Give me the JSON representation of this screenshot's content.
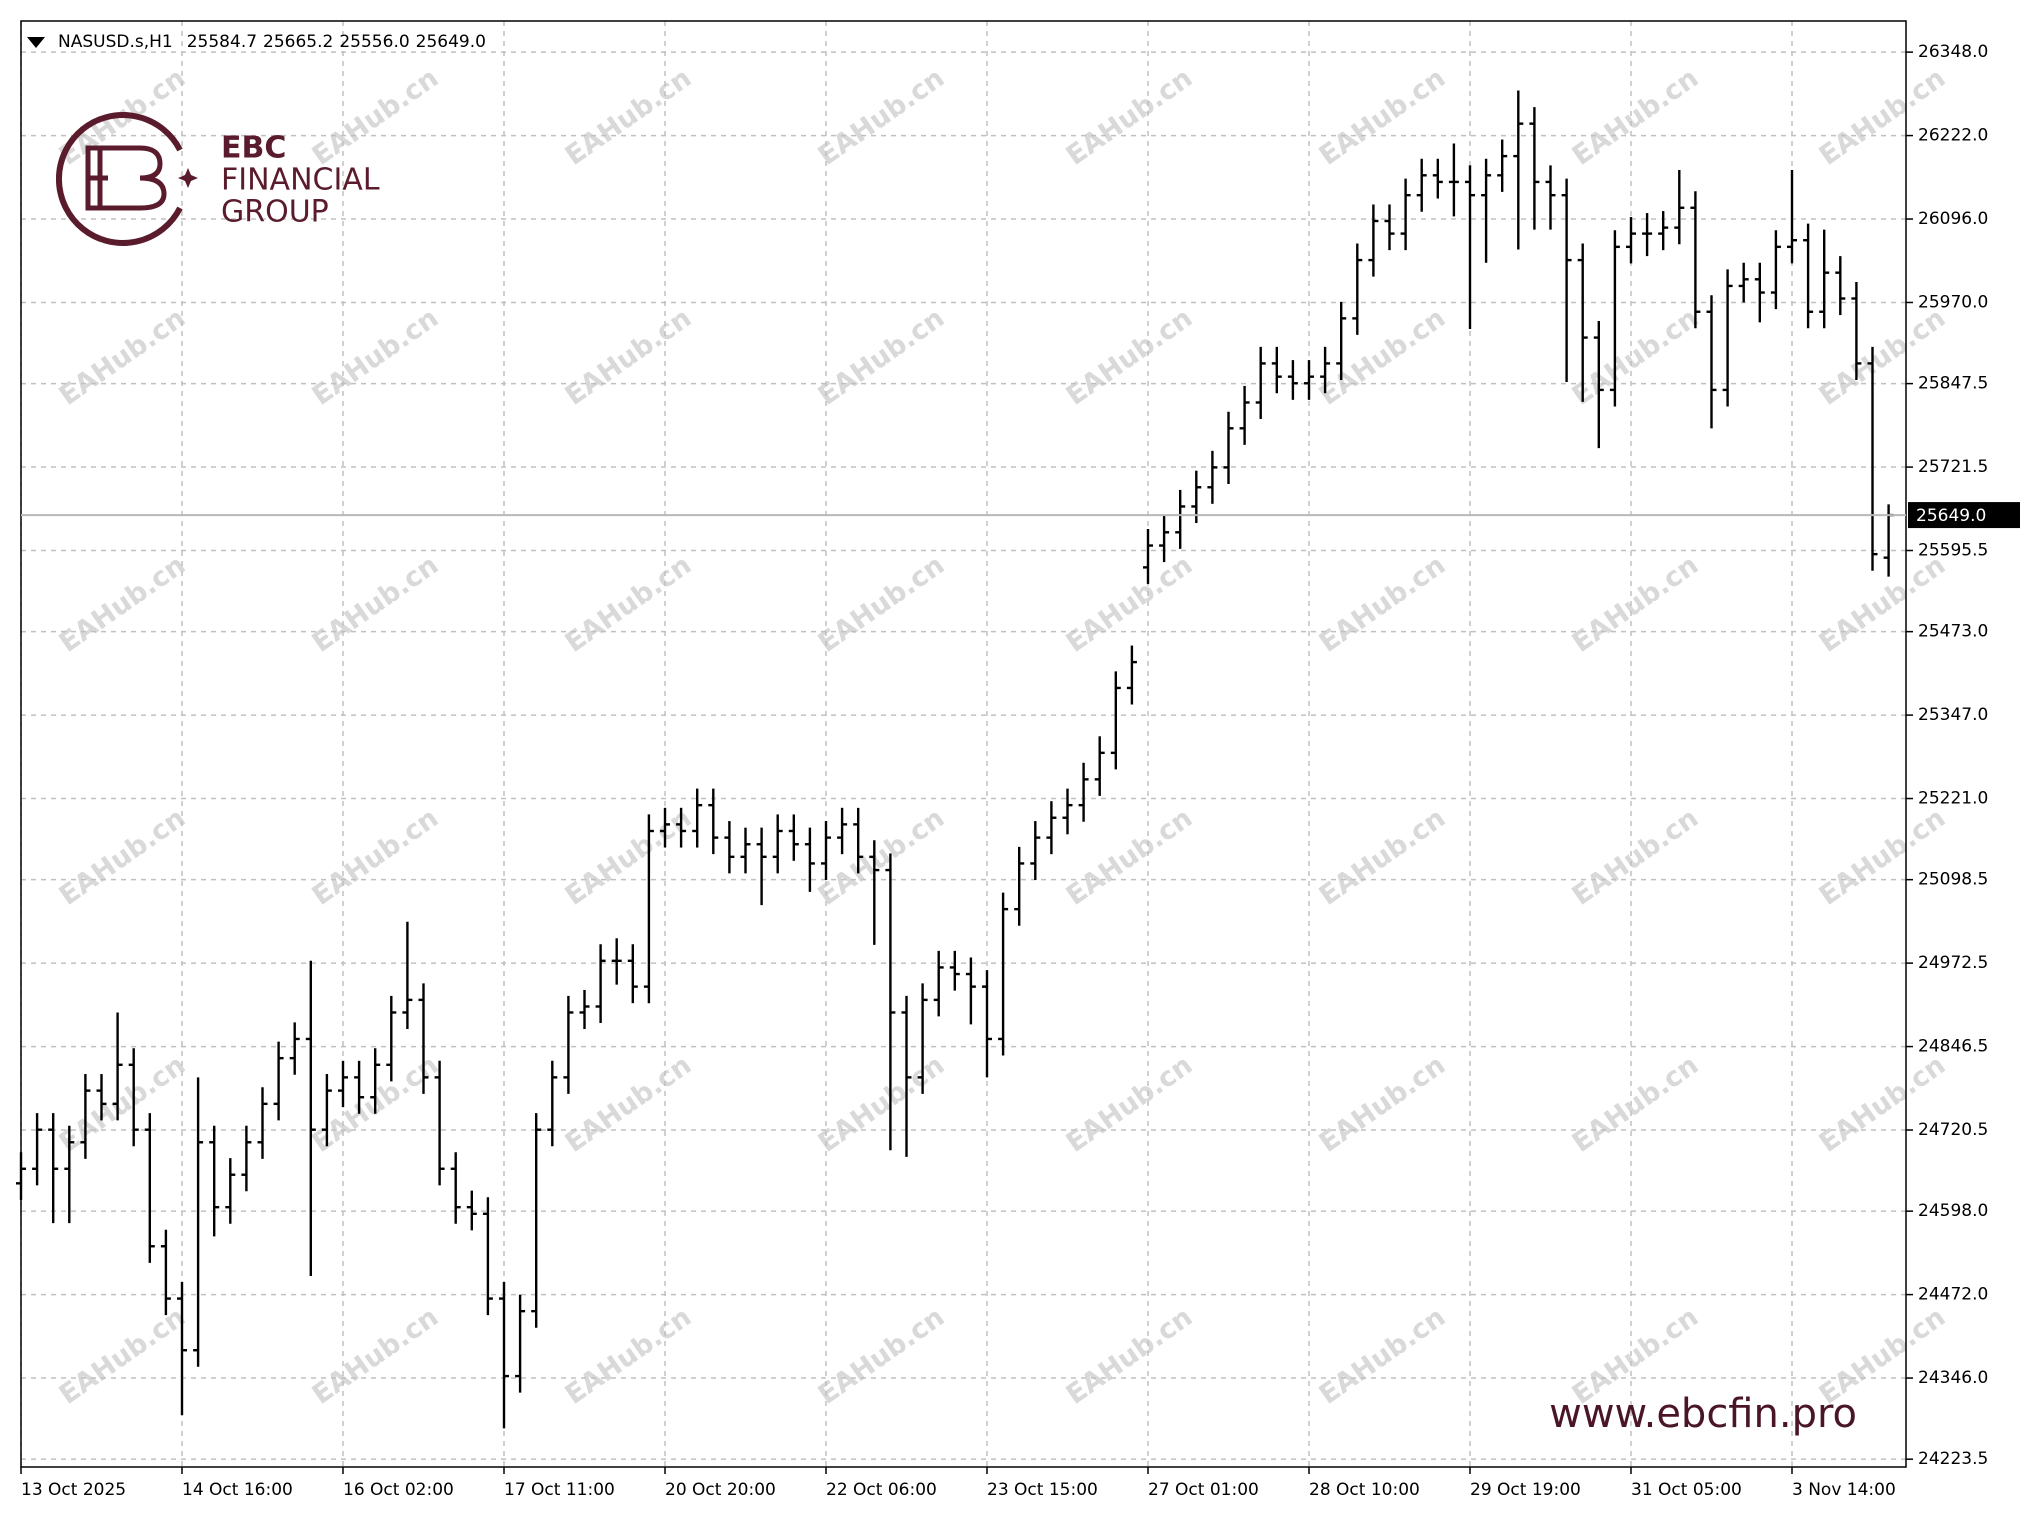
{
  "chart_data": {
    "type": "ohlc",
    "header": {
      "symbol": "NASUSD.s,H1",
      "open": "25584.7",
      "high": "25665.2",
      "low": "25556.0",
      "close": "25649.0"
    },
    "brand": {
      "name": "EBC",
      "line1": "FINANCIAL",
      "line2": "GROUP",
      "url": "www.ebcfin.pro"
    },
    "watermark": "EAHub.cn",
    "color": "#000000",
    "grid": true,
    "xticks": [
      {
        "value": 0,
        "label": "13 Oct 2025"
      },
      {
        "value": 10,
        "label": "14 Oct 16:00"
      },
      {
        "value": 20,
        "label": "16 Oct 02:00"
      },
      {
        "value": 30,
        "label": "17 Oct 11:00"
      },
      {
        "value": 40,
        "label": "20 Oct 20:00"
      },
      {
        "value": 50,
        "label": "22 Oct 06:00"
      },
      {
        "value": 60,
        "label": "23 Oct 15:00"
      },
      {
        "value": 70,
        "label": "27 Oct 01:00"
      },
      {
        "value": 80,
        "label": "28 Oct 10:00"
      },
      {
        "value": 90,
        "label": "29 Oct 19:00"
      },
      {
        "value": 100,
        "label": "31 Oct 05:00"
      },
      {
        "value": 110,
        "label": "3 Nov 14:00"
      }
    ],
    "ylim": [
      24211.7,
      26395
    ],
    "yticks": [
      {
        "value": 26348.0,
        "label": "26348.0"
      },
      {
        "value": 26222.0,
        "label": "26222.0"
      },
      {
        "value": 26096.0,
        "label": "26096.0"
      },
      {
        "value": 25970.0,
        "label": "25970.0"
      },
      {
        "value": 25847.5,
        "label": "25847.5"
      },
      {
        "value": 25721.5,
        "label": "25721.5"
      },
      {
        "value": 25595.5,
        "label": "25595.5"
      },
      {
        "value": 25473.0,
        "label": "25473.0"
      },
      {
        "value": 25347.0,
        "label": "25347.0"
      },
      {
        "value": 25221.0,
        "label": "25221.0"
      },
      {
        "value": 25098.5,
        "label": "25098.5"
      },
      {
        "value": 24972.5,
        "label": "24972.5"
      },
      {
        "value": 24846.5,
        "label": "24846.5"
      },
      {
        "value": 24720.5,
        "label": "24720.5"
      },
      {
        "value": 24598.0,
        "label": "24598.0"
      },
      {
        "value": 24472.0,
        "label": "24472.0"
      },
      {
        "value": 24346.0,
        "label": "24346.0"
      },
      {
        "value": 24223.5,
        "label": "24223.5"
      }
    ],
    "open": [
      24640,
      24662,
      24721,
      24662,
      24702,
      24780,
      24760,
      24819,
      24721,
      24545,
      24466,
      24388,
      24702,
      24604,
      24653,
      24702,
      24760,
      24829,
      24858,
      24721,
      24780,
      24800,
      24770,
      24819,
      24898,
      24917,
      24800,
      24662,
      24604,
      24594,
      24466,
      24349,
      24447,
      24721,
      24800,
      24898,
      24907,
      24976,
      24976,
      24937,
      25172,
      25182,
      25172,
      25211,
      25162,
      25133,
      25152,
      25133,
      25172,
      25152,
      25123,
      25162,
      25182,
      25133,
      25113,
      24898,
      24800,
      24917,
      24966,
      24956,
      24937,
      24858,
      25054,
      25123,
      25162,
      25192,
      25211,
      25250,
      25290,
      25388,
      25570,
      25603,
      25623,
      25662,
      25691,
      25721,
      25780,
      25819,
      25878,
      25858,
      25848,
      25858,
      25878,
      25946,
      26034,
      26093,
      26074,
      26132,
      26162,
      26152,
      26152,
      26132,
      26162,
      26191,
      26240,
      26152,
      26132,
      26034,
      25917,
      25838,
      26054,
      26074,
      26074,
      26083,
      26113,
      25956,
      25838,
      25995,
      26005,
      25985,
      26054,
      26064,
      25956,
      26015,
      25976,
      25878,
      25584.7
    ],
    "high": [
      24687,
      24746,
      24746,
      24727,
      24805,
      24805,
      24898,
      24844,
      24746,
      24570,
      24491,
      24800,
      24727,
      24678,
      24727,
      24785,
      24854,
      24883,
      24976,
      24805,
      24825,
      24825,
      24844,
      24923,
      25035,
      24942,
      24825,
      24687,
      24629,
      24619,
      24491,
      24472,
      24746,
      24825,
      24923,
      24932,
      25001,
      25010,
      25001,
      25197,
      25207,
      25207,
      25236,
      25236,
      25187,
      25177,
      25177,
      25197,
      25197,
      25177,
      25187,
      25207,
      25207,
      25158,
      25138,
      24923,
      24942,
      24991,
      24991,
      24981,
      24962,
      25079,
      25148,
      25187,
      25217,
      25236,
      25275,
      25315,
      25413,
      25452,
      25628,
      25648,
      25687,
      25716,
      25746,
      25805,
      25844,
      25903,
      25903,
      25883,
      25883,
      25903,
      25971,
      26059,
      26118,
      26118,
      26157,
      26187,
      26187,
      26210,
      26177,
      26187,
      26216,
      26290,
      26265,
      26177,
      26157,
      26059,
      25942,
      26079,
      26099,
      26105,
      26108,
      26170,
      26138,
      25981,
      26020,
      26030,
      26030,
      26079,
      26170,
      26089,
      26080,
      26040,
      26001,
      25903,
      25665.2
    ],
    "low": [
      24615,
      24637,
      24580,
      24580,
      24677,
      24735,
      24735,
      24696,
      24520,
      24441,
      24290,
      24363,
      24560,
      24579,
      24628,
      24677,
      24735,
      24804,
      24500,
      24696,
      24755,
      24745,
      24745,
      24794,
      24873,
      24775,
      24637,
      24579,
      24569,
      24441,
      24270,
      24324,
      24422,
      24696,
      24775,
      24873,
      24882,
      24940,
      24912,
      24912,
      25147,
      25147,
      25147,
      25137,
      25108,
      25108,
      25060,
      25108,
      25127,
      25080,
      25098,
      25137,
      25108,
      25000,
      24690,
      24680,
      24775,
      24892,
      24931,
      24880,
      24800,
      24833,
      25029,
      25098,
      25137,
      25167,
      25186,
      25225,
      25265,
      25363,
      25545,
      25578,
      25598,
      25637,
      25666,
      25696,
      25755,
      25794,
      25833,
      25823,
      25823,
      25833,
      25853,
      25921,
      26009,
      26049,
      26049,
      26107,
      26127,
      26100,
      25930,
      26030,
      26137,
      26050,
      26080,
      26080,
      25850,
      25820,
      25750,
      25813,
      26029,
      26040,
      26049,
      26058,
      25931,
      25780,
      25813,
      25970,
      25940,
      25960,
      26029,
      25931,
      25931,
      25951,
      25853,
      25565,
      25556.0
    ],
    "close": [
      24662,
      24721,
      24662,
      24702,
      24780,
      24760,
      24819,
      24721,
      24545,
      24466,
      24388,
      24702,
      24604,
      24653,
      24702,
      24760,
      24829,
      24858,
      24721,
      24780,
      24800,
      24770,
      24819,
      24898,
      24917,
      24800,
      24662,
      24604,
      24594,
      24466,
      24349,
      24447,
      24721,
      24800,
      24898,
      24907,
      24976,
      24976,
      24937,
      25172,
      25182,
      25172,
      25211,
      25162,
      25133,
      25152,
      25133,
      25172,
      25152,
      25123,
      25162,
      25182,
      25133,
      25113,
      24898,
      24800,
      24917,
      24966,
      24956,
      24937,
      24858,
      25054,
      25123,
      25162,
      25192,
      25211,
      25250,
      25290,
      25388,
      25427,
      25603,
      25623,
      25662,
      25691,
      25721,
      25780,
      25819,
      25878,
      25858,
      25848,
      25858,
      25878,
      25946,
      26034,
      26093,
      26074,
      26132,
      26162,
      26152,
      26152,
      26132,
      26162,
      26191,
      26240,
      26152,
      26132,
      26034,
      25917,
      25838,
      26054,
      26074,
      26074,
      26083,
      26113,
      25956,
      25838,
      25995,
      26005,
      25985,
      26054,
      26064,
      25956,
      26015,
      25976,
      25878,
      25590,
      25649.0
    ]
  }
}
